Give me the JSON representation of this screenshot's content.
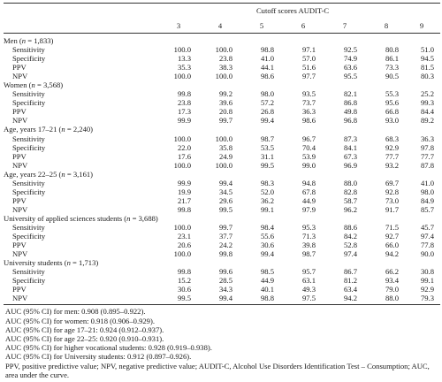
{
  "table": {
    "header_title": "Cutoff scores AUDIT-C",
    "columns": [
      "3",
      "4",
      "5",
      "6",
      "7",
      "8",
      "9"
    ],
    "groups": [
      {
        "label_prefix": "Men (",
        "n_symbol": "n",
        "label_suffix": " = 1,833)",
        "rows": [
          {
            "measure": "Sensitivity",
            "values": [
              "100.0",
              "100.0",
              "98.8",
              "97.1",
              "92.5",
              "80.8",
              "51.0"
            ]
          },
          {
            "measure": "Specificity",
            "values": [
              "13.3",
              "23.8",
              "41.0",
              "57.0",
              "74.9",
              "86.1",
              "94.5"
            ]
          },
          {
            "measure": "PPV",
            "values": [
              "35.3",
              "38.3",
              "44.1",
              "51.6",
              "63.6",
              "73.3",
              "81.5"
            ]
          },
          {
            "measure": "NPV",
            "values": [
              "100.0",
              "100.0",
              "98.6",
              "97.7",
              "95.5",
              "90.5",
              "80.3"
            ]
          }
        ]
      },
      {
        "label_prefix": "Women (",
        "n_symbol": "n",
        "label_suffix": " = 3,568)",
        "rows": [
          {
            "measure": "Sensitivity",
            "values": [
              "99.8",
              "99.2",
              "98.0",
              "93.5",
              "82.1",
              "55.3",
              "25.2"
            ]
          },
          {
            "measure": "Specificity",
            "values": [
              "23.8",
              "39.6",
              "57.2",
              "73.7",
              "86.8",
              "95.6",
              "99.3"
            ]
          },
          {
            "measure": "PPV",
            "values": [
              "17.3",
              "20.8",
              "26.8",
              "36.3",
              "49.8",
              "66.8",
              "84.4"
            ]
          },
          {
            "measure": "NPV",
            "values": [
              "99.9",
              "99.7",
              "99.4",
              "98.6",
              "96.8",
              "93.0",
              "89.2"
            ]
          }
        ]
      },
      {
        "label_prefix": "Age, years 17–21 (",
        "n_symbol": "n",
        "label_suffix": " = 2,240)",
        "rows": [
          {
            "measure": "Sensitivity",
            "values": [
              "100.0",
              "100.0",
              "98.7",
              "96.7",
              "87.3",
              "68.3",
              "36.3"
            ]
          },
          {
            "measure": "Specificity",
            "values": [
              "22.0",
              "35.8",
              "53.5",
              "70.4",
              "84.1",
              "92.9",
              "97.8"
            ]
          },
          {
            "measure": "PPV",
            "values": [
              "17.6",
              "24.9",
              "31.1",
              "53.9",
              "67.3",
              "77.7",
              "77.7"
            ]
          },
          {
            "measure": "NPV",
            "values": [
              "100.0",
              "100.0",
              "99.5",
              "99.0",
              "96.9",
              "93.2",
              "87.8"
            ]
          }
        ]
      },
      {
        "label_prefix": "Age, years 22–25 (",
        "n_symbol": "n",
        "label_suffix": " = 3,161)",
        "rows": [
          {
            "measure": "Sensitivity",
            "values": [
              "99.9",
              "99.4",
              "98.3",
              "94.8",
              "88.0",
              "69.7",
              "41.0"
            ]
          },
          {
            "measure": "Specificity",
            "values": [
              "19.9",
              "34.5",
              "52.0",
              "67.8",
              "82.8",
              "92.8",
              "98.0"
            ]
          },
          {
            "measure": "PPV",
            "values": [
              "21.7",
              "29.6",
              "36.2",
              "44.9",
              "58.7",
              "73.0",
              "84.9"
            ]
          },
          {
            "measure": "NPV",
            "values": [
              "99.8",
              "99.5",
              "99.1",
              "97.9",
              "96.2",
              "91.7",
              "85.7"
            ]
          }
        ]
      },
      {
        "label_prefix": "University of applied sciences students (",
        "n_symbol": "n",
        "label_suffix": " = 3,688)",
        "rows": [
          {
            "measure": "Sensitivity",
            "values": [
              "100.0",
              "99.7",
              "98.4",
              "95.3",
              "88.6",
              "71.5",
              "45.7"
            ]
          },
          {
            "measure": "Specificity",
            "values": [
              "23.1",
              "37.7",
              "55.6",
              "71.3",
              "84.2",
              "92.7",
              "97.4"
            ]
          },
          {
            "measure": "PPV",
            "values": [
              "20.6",
              "24.2",
              "30.6",
              "39.8",
              "52.8",
              "66.0",
              "77.8"
            ]
          },
          {
            "measure": "NPV",
            "values": [
              "100.0",
              "99.8",
              "99.4",
              "98.7",
              "97.4",
              "94.2",
              "90.0"
            ]
          }
        ]
      },
      {
        "label_prefix": "University students (",
        "n_symbol": "n",
        "label_suffix": " = 1,713)",
        "rows": [
          {
            "measure": "Sensitivity",
            "values": [
              "99.8",
              "99.6",
              "98.5",
              "95.7",
              "86.7",
              "66.2",
              "30.8"
            ]
          },
          {
            "measure": "Specificity",
            "values": [
              "15.2",
              "28.5",
              "44.9",
              "63.1",
              "81.2",
              "93.4",
              "99.1"
            ]
          },
          {
            "measure": "PPV",
            "values": [
              "30.6",
              "34.3",
              "40.1",
              "49.3",
              "63.4",
              "79.0",
              "92.9"
            ]
          },
          {
            "measure": "NPV",
            "values": [
              "99.5",
              "99.4",
              "98.8",
              "97.5",
              "94.2",
              "88.0",
              "79.3"
            ]
          }
        ]
      }
    ]
  },
  "notes": [
    "AUC (95% CI) for men: 0.908 (0.895–0.922).",
    "AUC (95% CI) for women: 0.918 (0.906–0.929).",
    "AUC (95% CI) for age 17–21: 0.924 (0.912–0.937).",
    "AUC (95% CI) for age 22–25: 0.920 (0.910–0.931).",
    "AUC (95% CI) for higher vocational students: 0.928 (0.919–0.938).",
    "AUC (95% CI) for University students: 0.912 (0.897–0.926).",
    "PPV, positive predictive value; NPV, negative predictive value; AUDIT-C, Alcohol Use Disorders Identification Test – Consumption; AUC, area under the curve."
  ]
}
